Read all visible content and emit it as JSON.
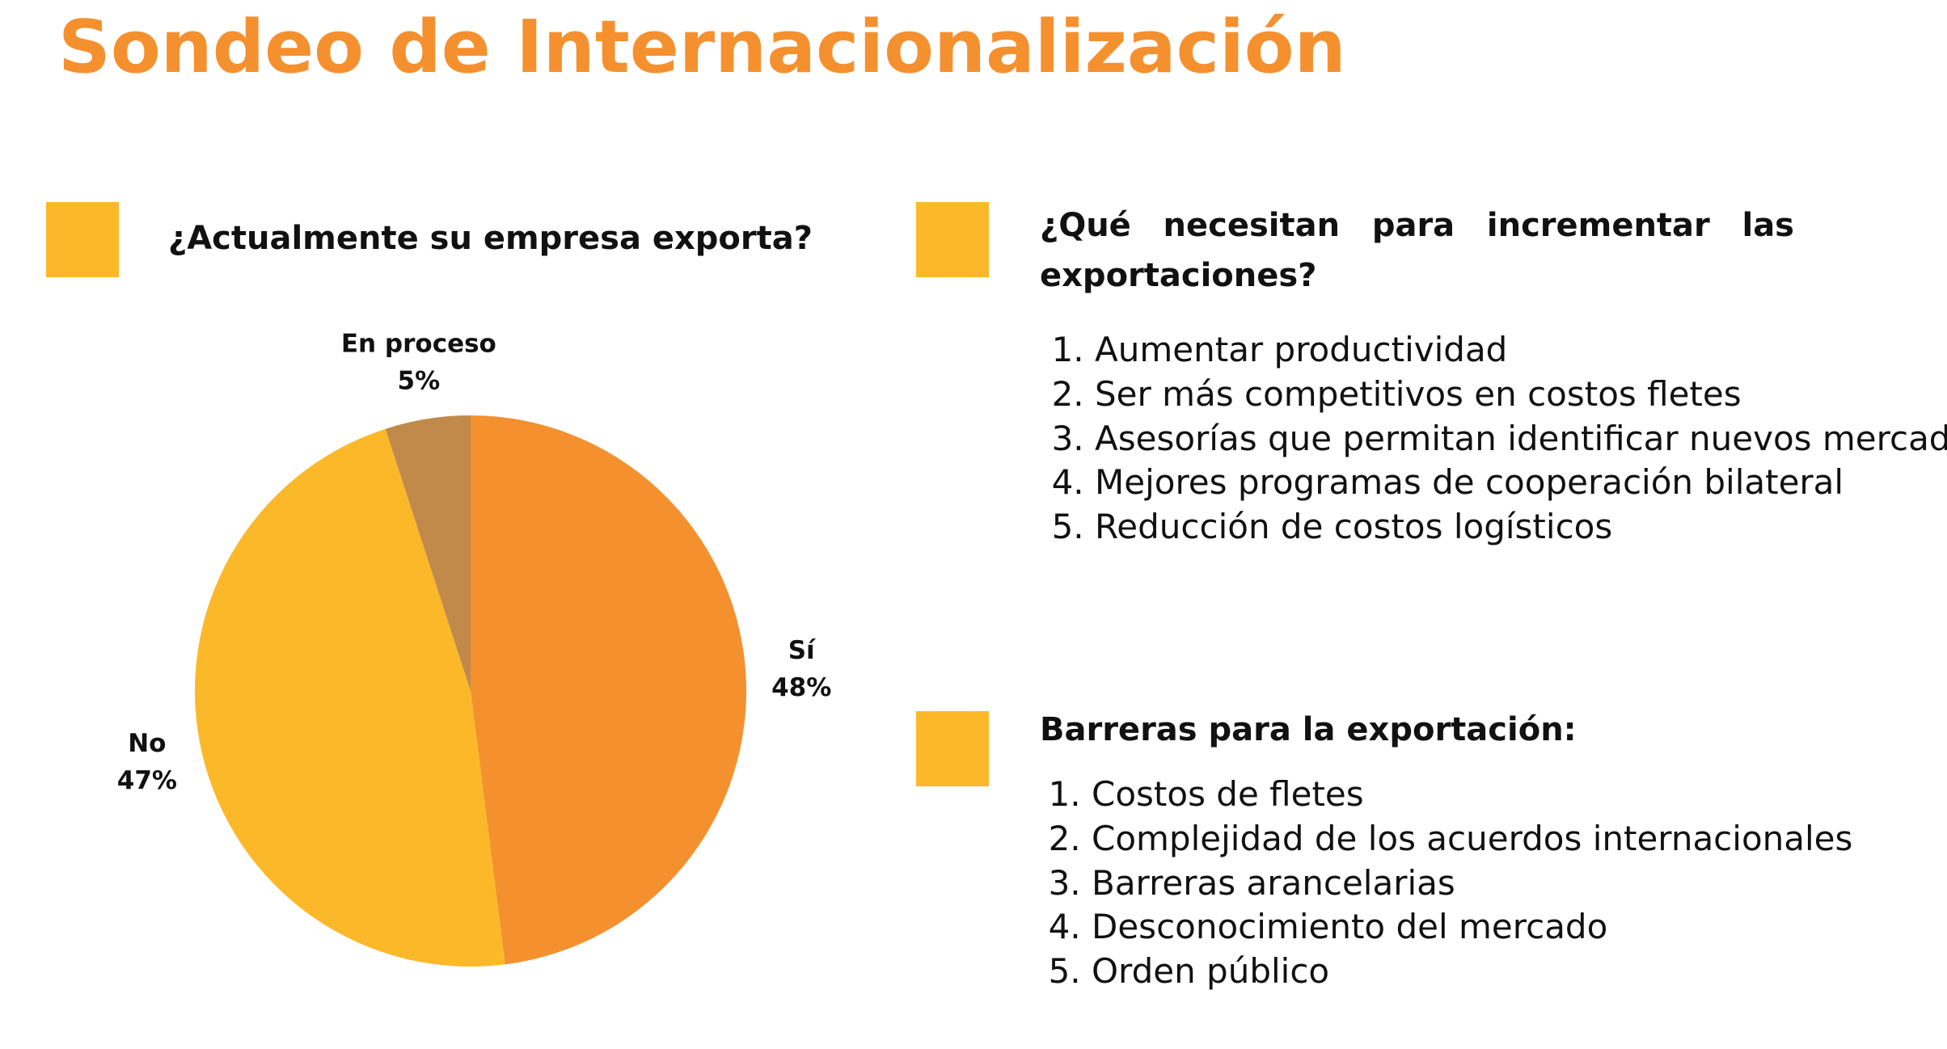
{
  "title": "Sondeo de Internacionalización",
  "chart_data": {
    "type": "pie",
    "title": "¿Actualmente su empresa exporta?",
    "categories": [
      "Sí",
      "No",
      "En proceso"
    ],
    "values": [
      48,
      47,
      5
    ],
    "value_labels": [
      "48%",
      "47%",
      "5%"
    ],
    "colors": [
      "#f5902f",
      "#fbb829",
      "#c18a4b"
    ]
  },
  "sections": [
    {
      "heading": "¿Qué necesitan para incrementar las exportaciones?",
      "items": [
        "Aumentar productividad",
        "Ser más competitivos en costos fletes",
        "Asesorías que permitan identificar nuevos mercados",
        "Mejores programas de cooperación bilateral",
        "Reducción de costos logísticos"
      ]
    },
    {
      "heading": "Barreras para la exportación:",
      "items": [
        "Costos de fletes",
        "Complejidad de los acuerdos internacionales",
        "Barreras arancelarias",
        "Desconocimiento del mercado",
        "Orden público"
      ]
    }
  ]
}
